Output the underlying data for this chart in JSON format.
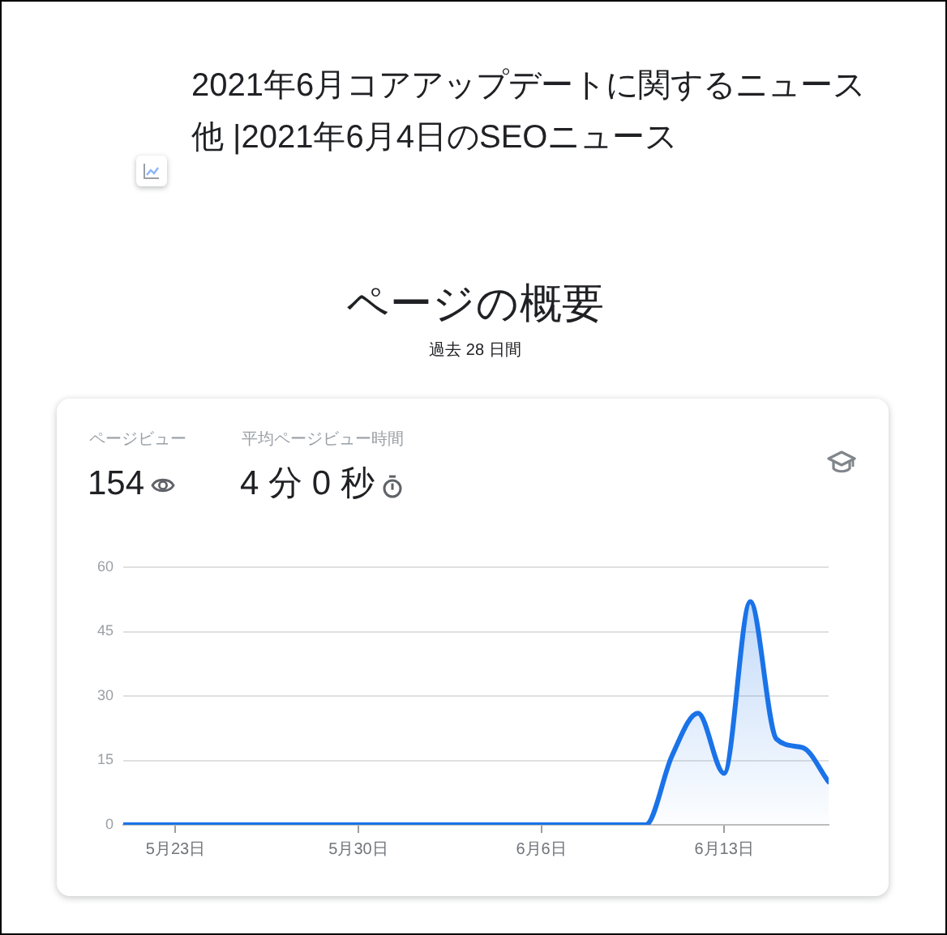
{
  "chart_data": {
    "type": "area",
    "title": "2021年6月コアアップデートに関するニュース他 |2021年6月4日のSEOニュース",
    "subtitle": "ページの概要",
    "annotations": [
      "過去 28 日間",
      "ページビュー",
      "154",
      "平均ページビュー時間",
      "4 分 0 秒"
    ],
    "x": [
      "--05-21",
      "--05-22",
      "--05-23",
      "--05-24",
      "--05-25",
      "--05-26",
      "--05-27",
      "--05-28",
      "--05-29",
      "--05-30",
      "--05-31",
      "--06-01",
      "--06-02",
      "--06-03",
      "--06-04",
      "--06-05",
      "--06-06",
      "--06-07",
      "--06-08",
      "--06-09",
      "--06-10",
      "--06-11",
      "--06-12",
      "--06-13",
      "--06-14",
      "--06-15",
      "--06-16",
      "--06-17"
    ],
    "values": [
      0,
      0,
      0,
      0,
      0,
      0,
      0,
      0,
      0,
      0,
      0,
      0,
      0,
      0,
      0,
      0,
      0,
      0,
      0,
      0,
      0,
      16,
      26,
      12,
      52,
      20,
      18,
      10
    ],
    "color": "#1a73e8",
    "xlim": [
      "--05-21",
      "--06-17"
    ],
    "xticks": [
      {
        "value": "--05-23",
        "label": "5月23日"
      },
      {
        "value": "--05-30",
        "label": "5月30日"
      },
      {
        "value": "--06-06",
        "label": "6月6日"
      },
      {
        "value": "--06-13",
        "label": "6月13日"
      }
    ],
    "ylim": [
      0,
      60
    ],
    "yticks": [
      0,
      15,
      30,
      45,
      60
    ],
    "grid": "y",
    "marker": "none",
    "legend": false
  }
}
